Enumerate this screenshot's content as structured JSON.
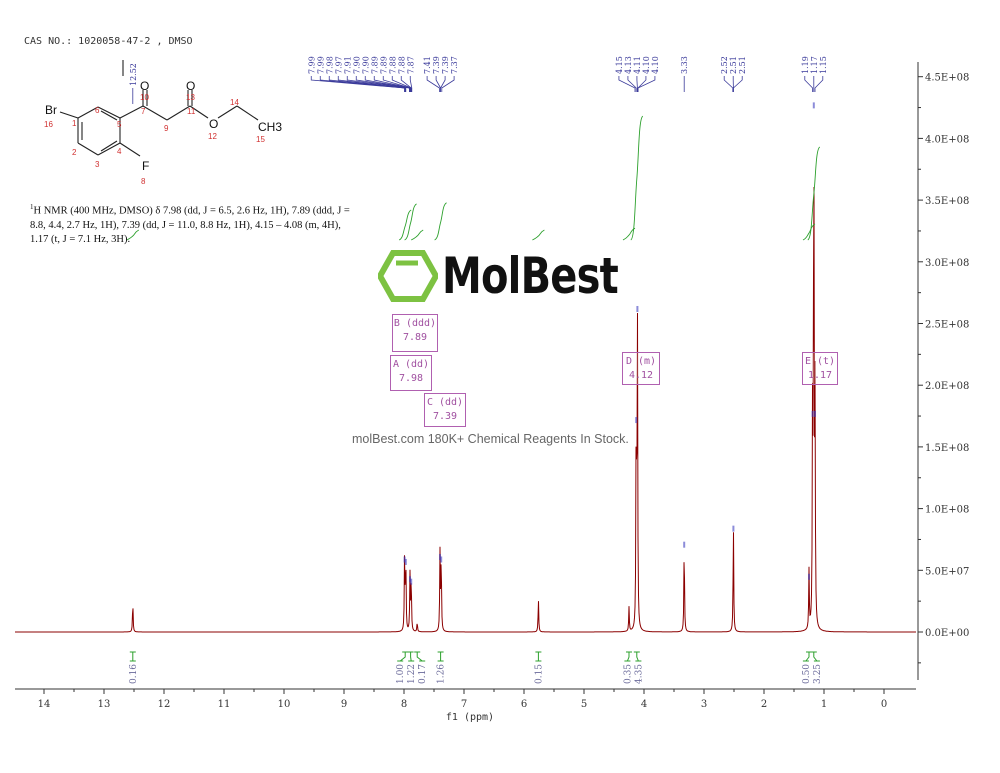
{
  "header": {
    "cas": "CAS NO.: 1020058-47-2 , DMSO"
  },
  "description": {
    "sup": "1",
    "text": "H NMR (400 MHz, DMSO) δ 7.98 (dd, J = 6.5, 2.6 Hz, 1H), 7.89 (ddd, J = 8.8, 4.4, 2.7 Hz, 1H), 7.39 (dd, J = 11.0, 8.8 Hz, 1H), 4.15 – 4.08 (m, 4H), 1.17 (t, J = 7.1 Hz, 3H)."
  },
  "structure": {
    "atoms": [
      "Br",
      "F",
      "O",
      "O",
      "O",
      "CH3"
    ],
    "numbers": [
      "1",
      "2",
      "3",
      "4",
      "5",
      "6",
      "7",
      "8",
      "9",
      "10",
      "11",
      "12",
      "13",
      "14",
      "15",
      "16"
    ]
  },
  "watermark": {
    "logo": "MolBest",
    "text": "molBest.com 180K+ Chemical Reagents In Stock."
  },
  "colors": {
    "spectrum": "#8b0000",
    "integral": "#2ca02c",
    "peak_label": "#3a3a9a",
    "multiplet": "#b060b0",
    "peak_tip": "#4040c0"
  },
  "chart_data": {
    "type": "line",
    "title": "",
    "xlabel": "f1 (ppm)",
    "ylabel": "",
    "xlim": [
      14.5,
      -0.5
    ],
    "x_reversed": true,
    "ylim": [
      -90000000.0,
      460000000.0
    ],
    "x_ticks": [
      "14",
      "13",
      "12",
      "11",
      "10",
      "9",
      "8",
      "7",
      "6",
      "5",
      "4",
      "3",
      "2",
      "1",
      "0"
    ],
    "y_ticks": [
      "0.0E+00",
      "5.0E+07",
      "1.0E+08",
      "1.5E+08",
      "2.0E+08",
      "2.5E+08",
      "3.0E+08",
      "3.5E+08",
      "4.0E+08",
      "4.5E+08"
    ],
    "y_tick_values": [
      0,
      50000000.0,
      100000000.0,
      150000000.0,
      200000000.0,
      250000000.0,
      300000000.0,
      350000000.0,
      400000000.0,
      450000000.0
    ],
    "peaks": [
      {
        "ppm": 12.52,
        "height": 25000000.0
      },
      {
        "ppm": 7.99,
        "height": 62000000.0
      },
      {
        "ppm": 7.97,
        "height": 60000000.0
      },
      {
        "ppm": 7.9,
        "height": 46000000.0
      },
      {
        "ppm": 7.88,
        "height": 44000000.0
      },
      {
        "ppm": 7.78,
        "height": 8000000.0
      },
      {
        "ppm": 7.4,
        "height": 64000000.0
      },
      {
        "ppm": 7.38,
        "height": 62000000.0
      },
      {
        "ppm": 5.76,
        "height": 27000000.0
      },
      {
        "ppm": 4.25,
        "height": 20000000.0
      },
      {
        "ppm": 4.13,
        "height": 175000000.0
      },
      {
        "ppm": 4.11,
        "height": 265000000.0
      },
      {
        "ppm": 3.33,
        "height": 74000000.0
      },
      {
        "ppm": 2.51,
        "height": 87000000.0
      },
      {
        "ppm": 1.25,
        "height": 48000000.0
      },
      {
        "ppm": 1.19,
        "height": 180000000.0
      },
      {
        "ppm": 1.17,
        "height": 430000000.0
      },
      {
        "ppm": 1.15,
        "height": 180000000.0
      }
    ],
    "peak_labels": [
      {
        "group": [
          7.99,
          7.99,
          7.98,
          7.97,
          7.91,
          7.9,
          7.9,
          7.89,
          7.89,
          7.88,
          7.88,
          7.87
        ],
        "labels": [
          "7.99",
          "7.99",
          "7.98",
          "7.97",
          "7.91",
          "7.90",
          "7.90",
          "7.89",
          "7.89",
          "7.88",
          "7.88",
          "7.87"
        ]
      },
      {
        "group": [
          7.41,
          7.39,
          7.39,
          7.37
        ],
        "labels": [
          "7.41",
          "7.39",
          "7.39",
          "7.37"
        ]
      },
      {
        "group": [
          4.15,
          4.13,
          4.11,
          4.1,
          4.1
        ],
        "labels": [
          "4.15",
          "4.13",
          "4.11",
          "4.10",
          "4.10"
        ]
      },
      {
        "group": [
          3.33
        ],
        "labels": [
          "3.33"
        ]
      },
      {
        "group": [
          2.52,
          2.51,
          2.51
        ],
        "labels": [
          "2.52",
          "2.51",
          "2.51"
        ]
      },
      {
        "group": [
          1.19,
          1.17,
          1.15
        ],
        "labels": [
          "1.19",
          "1.17",
          "1.15"
        ]
      },
      {
        "group": [
          12.52
        ],
        "labels": [
          "12.52"
        ]
      }
    ],
    "integrals": [
      {
        "ppm": 12.52,
        "value": "0.16"
      },
      {
        "ppm": 7.98,
        "value": "1.00"
      },
      {
        "ppm": 7.89,
        "value": "1.22"
      },
      {
        "ppm": 7.78,
        "value": "0.17"
      },
      {
        "ppm": 7.39,
        "value": "1.26"
      },
      {
        "ppm": 5.76,
        "value": "0.15"
      },
      {
        "ppm": 4.25,
        "value": "0.35"
      },
      {
        "ppm": 4.12,
        "value": "4.35"
      },
      {
        "ppm": 1.25,
        "value": "0.50"
      },
      {
        "ppm": 1.17,
        "value": "3.25"
      }
    ],
    "multiplets": [
      {
        "label": "B (ddd)",
        "shift": "7.89"
      },
      {
        "label": "A (dd)",
        "shift": "7.98"
      },
      {
        "label": "C (dd)",
        "shift": "7.39"
      },
      {
        "label": "D (m)",
        "shift": "4.12"
      },
      {
        "label": "E (t)",
        "shift": "1.17"
      }
    ],
    "grid": false
  }
}
